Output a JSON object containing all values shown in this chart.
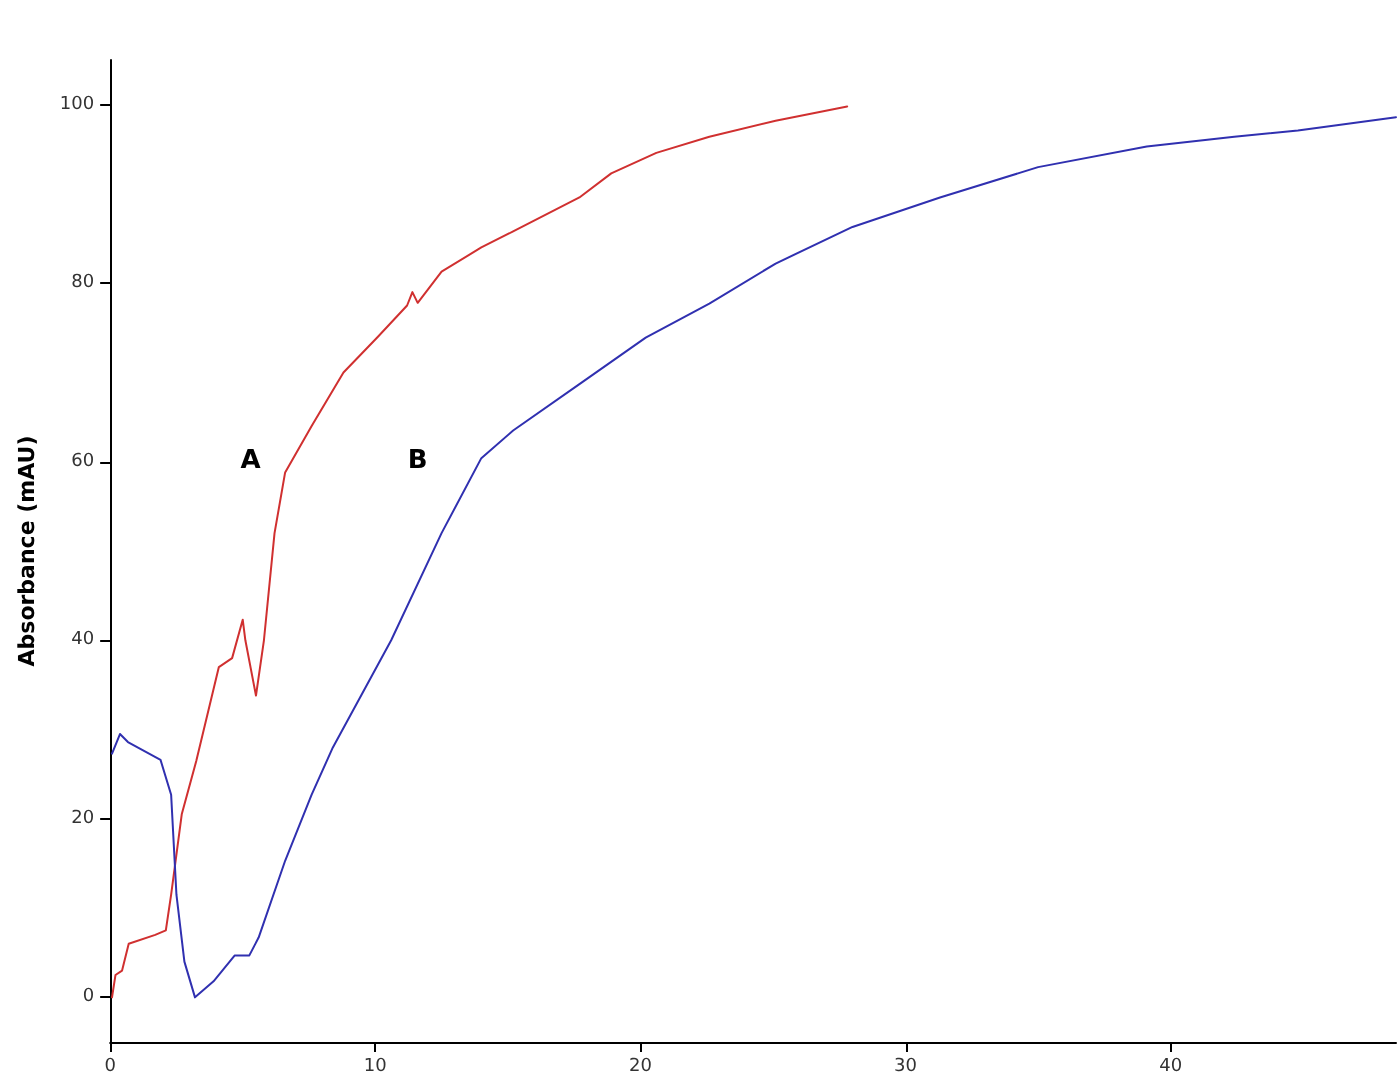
{
  "chart_data": {
    "type": "line",
    "ylabel": "Absorbance (mAU)",
    "xlim": [
      0,
      48.5
    ],
    "ylim": [
      -5,
      105
    ],
    "xticks": [
      0,
      10,
      20,
      30,
      40
    ],
    "yticks": [
      0,
      20,
      40,
      60,
      80,
      100
    ],
    "grid": false,
    "marker": "none",
    "line_style": "solid",
    "series": [
      {
        "name": "A",
        "color": "#d03030",
        "x": [
          0.07,
          0.2,
          0.45,
          0.7,
          1.7,
          2.1,
          2.3,
          2.7,
          3.25,
          4.1,
          4.6,
          5.0,
          5.1,
          5.5,
          5.8,
          6.2,
          6.6,
          7.6,
          8.8,
          10.1,
          11.2,
          11.4,
          11.6,
          12.5,
          14.0,
          15.2,
          17.7,
          18.9,
          20.6,
          22.6,
          25.1,
          27.8
        ],
        "values": [
          0,
          2.5,
          3,
          6,
          7,
          7.5,
          11.5,
          20.5,
          26.5,
          37,
          38,
          42.3,
          40,
          33.8,
          40,
          52,
          58.8,
          64,
          70,
          74,
          77.5,
          79,
          77.8,
          81.3,
          84,
          85.8,
          89.6,
          92.3,
          94.6,
          96.4,
          98.2,
          99.8
        ]
      },
      {
        "name": "B",
        "color": "#3030b0",
        "x": [
          0.07,
          0.37,
          0.67,
          1.9,
          2.3,
          2.5,
          2.8,
          3.2,
          3.9,
          4.7,
          5.25,
          5.6,
          6.6,
          7.6,
          8.4,
          10.6,
          12.5,
          14.0,
          15.2,
          17.7,
          20.2,
          22.6,
          25.1,
          28.0,
          31.3,
          35.0,
          39.1,
          42.4,
          44.8,
          48.5
        ],
        "values": [
          27.3,
          29.5,
          28.6,
          26.6,
          22.7,
          11.5,
          4,
          0,
          1.8,
          4.7,
          4.7,
          6.7,
          15.3,
          22.7,
          28,
          40,
          52,
          60.4,
          63.5,
          68.7,
          73.9,
          77.7,
          82.2,
          86.3,
          89.6,
          93,
          95.3,
          96.4,
          97.1,
          98.6
        ]
      }
    ]
  }
}
